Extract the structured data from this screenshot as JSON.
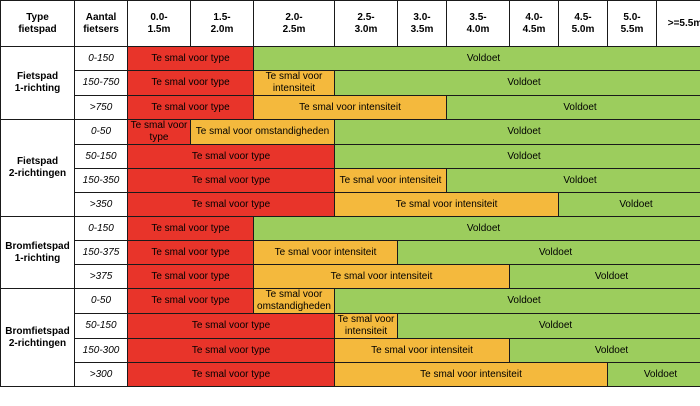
{
  "header": {
    "type_label": "Type\nfietspad",
    "count_label": "Aantal\nfietsers",
    "widths": [
      "0.0-\n1.5m",
      "1.5-\n2.0m",
      "2.0-\n2.5m",
      "2.5-\n3.0m",
      "3.0-\n3.5m",
      "3.5-\n4.0m",
      "4.0-\n4.5m",
      "4.5-\n5.0m",
      "5.0-\n5.5m",
      ">=5.5m"
    ]
  },
  "colors": {
    "red": "#e8342a",
    "orange": "#f4b93d",
    "green": "#9ccd5d"
  },
  "groups": [
    {
      "type": "Fietspad\n1-richting",
      "rows": [
        {
          "count": "0-150",
          "segments": [
            {
              "label": "Te smal voor type",
              "span": 2,
              "color": "red"
            },
            {
              "label": "Voldoet",
              "span": 8,
              "color": "green"
            }
          ]
        },
        {
          "count": "150-750",
          "segments": [
            {
              "label": "Te smal voor type",
              "span": 2,
              "color": "red"
            },
            {
              "label": "Te smal voor\nintensiteit",
              "span": 1,
              "color": "orange"
            },
            {
              "label": "Voldoet",
              "span": 7,
              "color": "green"
            }
          ]
        },
        {
          "count": ">750",
          "segments": [
            {
              "label": "Te smal voor type",
              "span": 2,
              "color": "red"
            },
            {
              "label": "Te smal voor intensiteit",
              "span": 3,
              "color": "orange"
            },
            {
              "label": "Voldoet",
              "span": 5,
              "color": "green"
            }
          ]
        }
      ]
    },
    {
      "type": "Fietspad\n2-richtingen",
      "rows": [
        {
          "count": "0-50",
          "segments": [
            {
              "label": "Te smal voor\ntype",
              "span": 1,
              "color": "red"
            },
            {
              "label": "Te smal voor omstandigheden",
              "span": 2,
              "color": "orange"
            },
            {
              "label": "Voldoet",
              "span": 7,
              "color": "green"
            }
          ]
        },
        {
          "count": "50-150",
          "segments": [
            {
              "label": "Te smal voor type",
              "span": 3,
              "color": "red"
            },
            {
              "label": "Voldoet",
              "span": 7,
              "color": "green"
            }
          ]
        },
        {
          "count": "150-350",
          "segments": [
            {
              "label": "Te smal voor type",
              "span": 3,
              "color": "red"
            },
            {
              "label": "Te smal voor intensiteit",
              "span": 2,
              "color": "orange"
            },
            {
              "label": "Voldoet",
              "span": 5,
              "color": "green"
            }
          ]
        },
        {
          "count": ">350",
          "segments": [
            {
              "label": "Te smal voor type",
              "span": 3,
              "color": "red"
            },
            {
              "label": "Te smal voor intensiteit",
              "span": 4,
              "color": "orange"
            },
            {
              "label": "Voldoet",
              "span": 3,
              "color": "green"
            }
          ]
        }
      ]
    },
    {
      "type": "Bromfietspad\n1-richting",
      "rows": [
        {
          "count": "0-150",
          "segments": [
            {
              "label": "Te smal voor type",
              "span": 2,
              "color": "red"
            },
            {
              "label": "Voldoet",
              "span": 8,
              "color": "green"
            }
          ]
        },
        {
          "count": "150-375",
          "segments": [
            {
              "label": "Te smal voor type",
              "span": 2,
              "color": "red"
            },
            {
              "label": "Te smal voor intensiteit",
              "span": 2,
              "color": "orange"
            },
            {
              "label": "Voldoet",
              "span": 6,
              "color": "green"
            }
          ]
        },
        {
          "count": ">375",
          "segments": [
            {
              "label": "Te smal voor type",
              "span": 2,
              "color": "red"
            },
            {
              "label": "Te smal voor intensiteit",
              "span": 4,
              "color": "orange"
            },
            {
              "label": "Voldoet",
              "span": 4,
              "color": "green"
            }
          ]
        }
      ]
    },
    {
      "type": "Bromfietspad\n2-richtingen",
      "rows": [
        {
          "count": "0-50",
          "segments": [
            {
              "label": "Te smal voor type",
              "span": 2,
              "color": "red"
            },
            {
              "label": "Te smal voor\nomstandigheden",
              "span": 1,
              "color": "orange"
            },
            {
              "label": "Voldoet",
              "span": 7,
              "color": "green"
            }
          ]
        },
        {
          "count": "50-150",
          "segments": [
            {
              "label": "Te smal voor type",
              "span": 3,
              "color": "red"
            },
            {
              "label": "Te smal voor\nintensiteit",
              "span": 1,
              "color": "orange"
            },
            {
              "label": "Voldoet",
              "span": 6,
              "color": "green"
            }
          ]
        },
        {
          "count": "150-300",
          "segments": [
            {
              "label": "Te smal voor type",
              "span": 3,
              "color": "red"
            },
            {
              "label": "Te smal voor intensiteit",
              "span": 3,
              "color": "orange"
            },
            {
              "label": "Voldoet",
              "span": 4,
              "color": "green"
            }
          ]
        },
        {
          "count": ">300",
          "segments": [
            {
              "label": "Te smal voor type",
              "span": 3,
              "color": "red"
            },
            {
              "label": "Te smal voor intensiteit",
              "span": 5,
              "color": "orange"
            },
            {
              "label": "Voldoet",
              "span": 2,
              "color": "green"
            }
          ]
        }
      ]
    }
  ]
}
